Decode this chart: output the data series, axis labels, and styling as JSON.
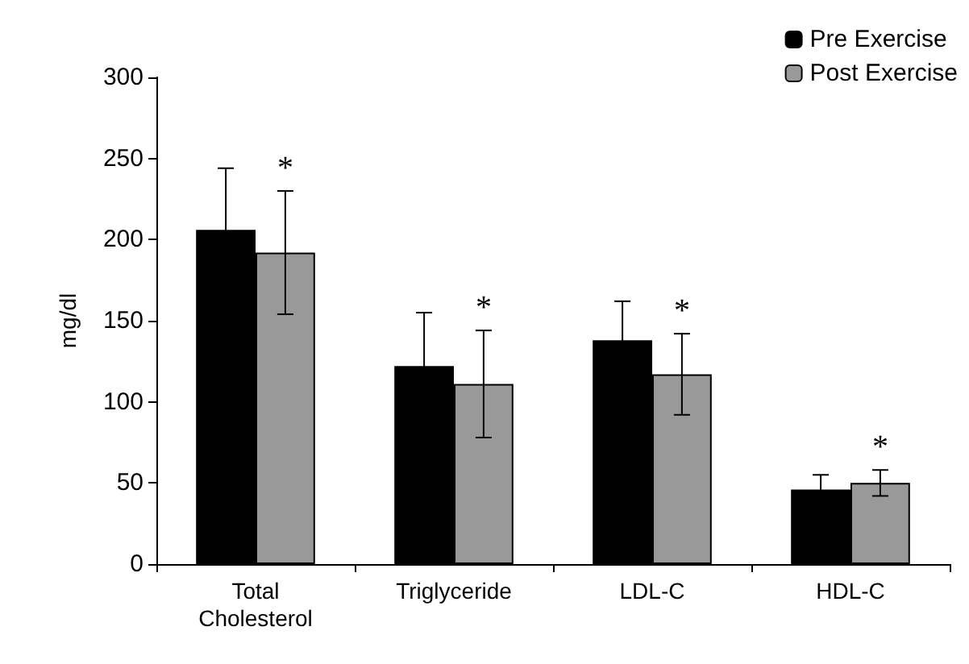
{
  "chart_data": {
    "type": "bar",
    "ylabel": "mg/dl",
    "categories": [
      "Total\nCholesterol",
      "Triglyceride",
      "LDL-C",
      "HDL-C"
    ],
    "series": [
      {
        "name": "Pre Exercise",
        "color": "#000000",
        "values": [
          206,
          122,
          138,
          46
        ],
        "errors": [
          38,
          33,
          24,
          9
        ]
      },
      {
        "name": "Post Exercise",
        "color": "#999999",
        "values": [
          192,
          111,
          117,
          50
        ],
        "errors": [
          38,
          33,
          25,
          8
        ]
      }
    ],
    "ylim": [
      0,
      300
    ],
    "yticks": [
      0,
      50,
      100,
      150,
      200,
      250,
      300
    ],
    "grid": false,
    "legend": "top right",
    "annotations": [
      "*",
      "*",
      "*",
      "*"
    ]
  }
}
